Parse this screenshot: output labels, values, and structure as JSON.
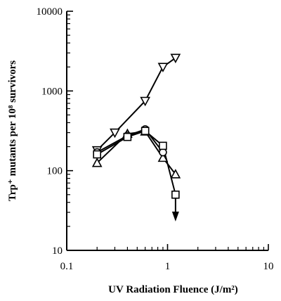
{
  "chart_data": {
    "type": "scatter",
    "xlabel": "UV Radiation Fluence (J/m²)",
    "ylabel": "Trp⁺ mutants per 10⁸ survivors",
    "xscale": "log",
    "yscale": "log",
    "xlim": [
      0.1,
      10
    ],
    "ylim": [
      10,
      10000
    ],
    "x_ticks": [
      "0.1",
      "1",
      "10"
    ],
    "y_ticks": [
      "10",
      "100",
      "1000",
      "10000"
    ],
    "grid": false,
    "legend": "none",
    "series": [
      {
        "marker": "triangle-down",
        "x": [
          0.2,
          0.3,
          0.6,
          0.9,
          1.2
        ],
        "y": [
          180,
          300,
          750,
          2000,
          2600
        ]
      },
      {
        "marker": "triangle-up",
        "x": [
          0.2,
          0.4,
          0.6,
          0.9,
          1.2
        ],
        "y": [
          125,
          290,
          310,
          145,
          90
        ]
      },
      {
        "marker": "circle",
        "x": [
          0.2,
          0.4,
          0.6,
          0.9
        ],
        "y": [
          170,
          275,
          330,
          170
        ]
      },
      {
        "marker": "square",
        "x": [
          0.2,
          0.4,
          0.6,
          0.9,
          1.2
        ],
        "y": [
          160,
          265,
          315,
          205,
          50
        ]
      }
    ],
    "annotations": [
      {
        "marker": "arrow-down",
        "x": 1.2,
        "y_from": 50,
        "y_to": 25
      }
    ]
  }
}
